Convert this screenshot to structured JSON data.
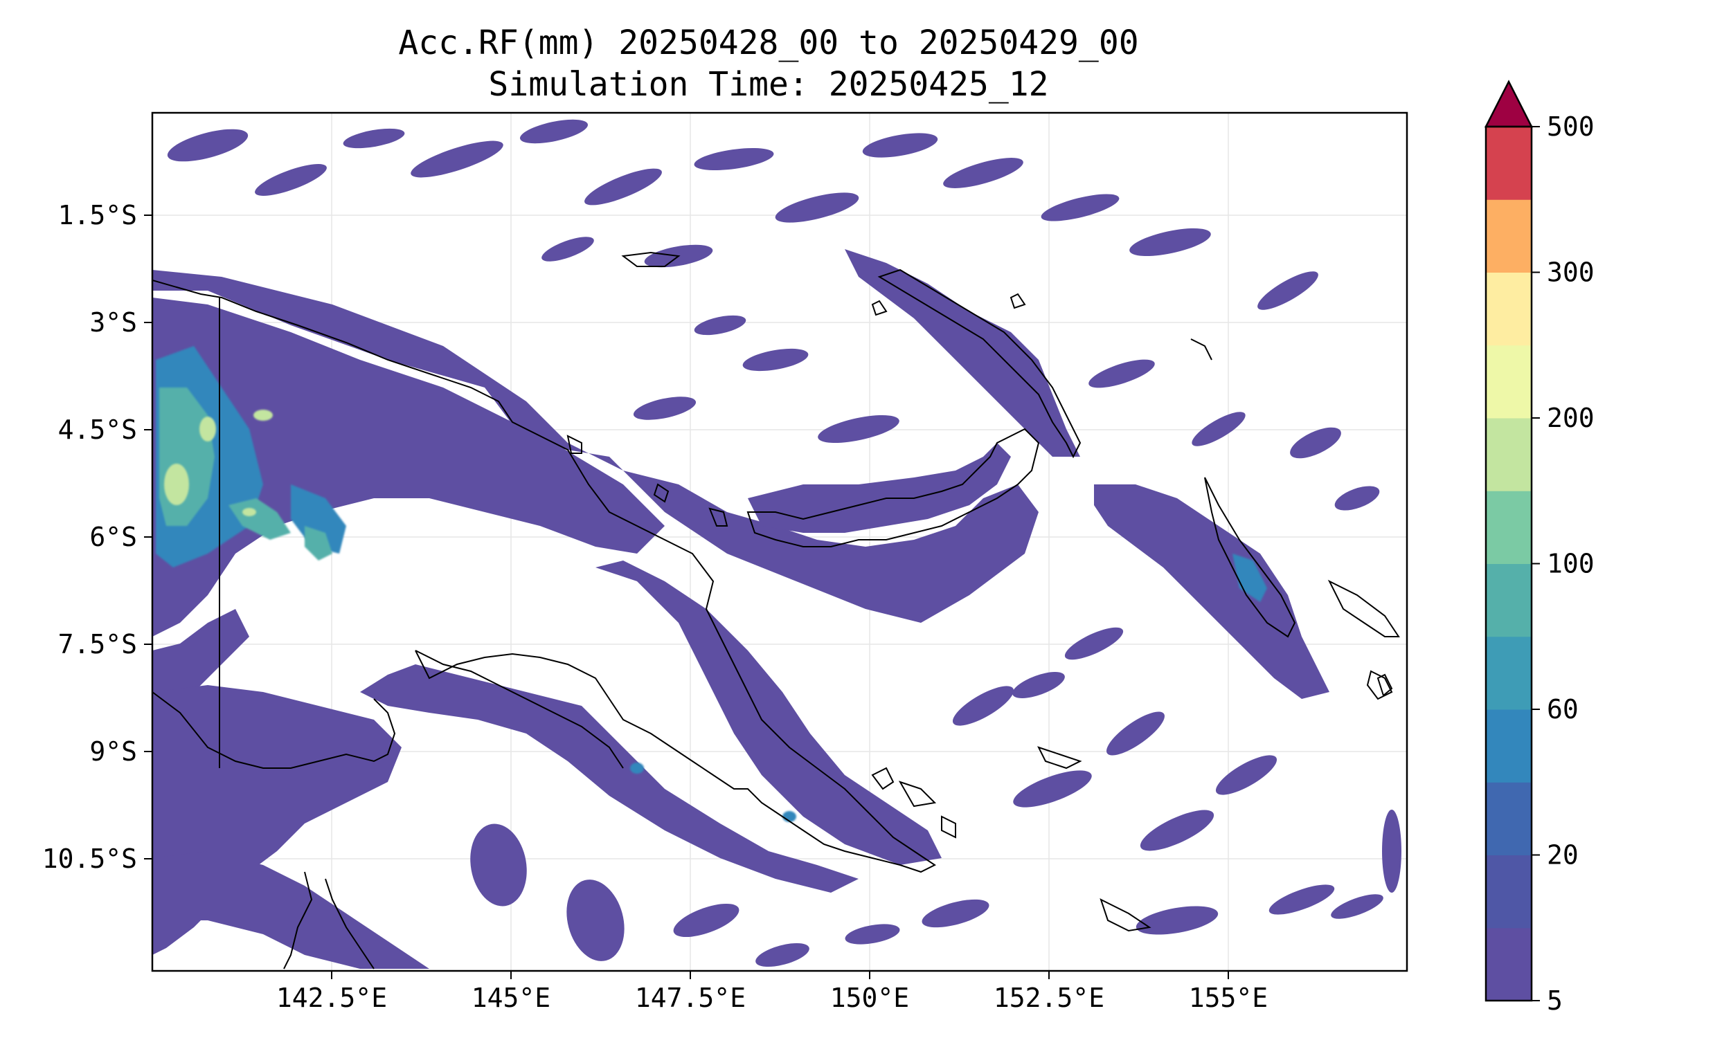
{
  "title_line1": "Acc.RF(mm) 20250428_00 to 20250429_00",
  "title_line2": "Simulation Time: 20250425_12",
  "x_ticks": [
    "142.5°E",
    "145°E",
    "147.5°E",
    "150°E",
    "152.5°E",
    "155°E"
  ],
  "y_ticks": [
    "1.5°S",
    "3°S",
    "4.5°S",
    "6°S",
    "7.5°S",
    "9°S",
    "10.5°S"
  ],
  "colorbar": {
    "levels": [
      5,
      10,
      20,
      40,
      60,
      80,
      100,
      150,
      200,
      250,
      300,
      350,
      500
    ],
    "labels": [
      "5",
      "20",
      "60",
      "100",
      "200",
      "300",
      "500"
    ],
    "label_levels": [
      5,
      20,
      60,
      100,
      200,
      300,
      500
    ],
    "colors": [
      "#5e4fa2",
      "#4f57a6",
      "#4068b0",
      "#3387bc",
      "#3e9cb6",
      "#55b0aa",
      "#7bcaa4",
      "#c3e5a0",
      "#eef8a8",
      "#feeda1",
      "#fdaf63",
      "#d5424f"
    ],
    "extend_color": "#9e0142"
  },
  "map_data": {
    "lon_range": [
      140.2,
      157.6
    ],
    "lat_range": [
      -12.0,
      -0.0
    ],
    "rain_color": "#5e4fa2",
    "coast_color": "#000000",
    "grid": true
  }
}
